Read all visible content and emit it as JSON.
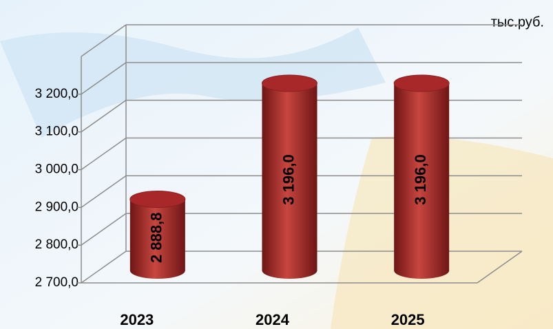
{
  "chart_data": {
    "type": "cylinder-bar",
    "annotation": "тыс.руб.",
    "categories": [
      "2023",
      "2024",
      "2025"
    ],
    "values": [
      2888.8,
      3196,
      3196
    ],
    "value_labels": [
      "2 888,8",
      "3 196,0",
      "3 196,0"
    ],
    "color": "#a8282a",
    "ylim": [
      2700,
      3300
    ],
    "yticks": [
      {
        "value": 2700,
        "label": "2 700,0"
      },
      {
        "value": 2800,
        "label": "2 800,0"
      },
      {
        "value": 2900,
        "label": "2 900,0"
      },
      {
        "value": 3000,
        "label": "3 000,0"
      },
      {
        "value": 3100,
        "label": "3 100,0"
      },
      {
        "value": 3200,
        "label": "3 200,0"
      }
    ],
    "grid": true
  }
}
